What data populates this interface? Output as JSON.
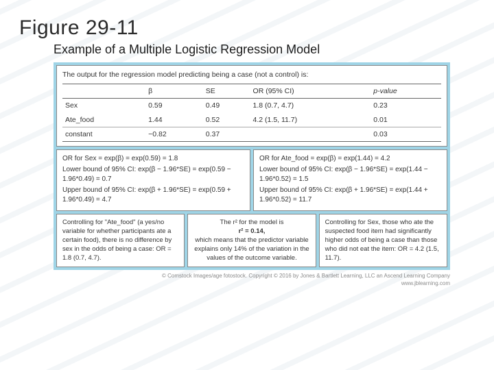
{
  "figure_label": "Figure 29-11",
  "subtitle": "Example of a Multiple Logistic Regression Model",
  "table": {
    "lead": "The output for the regression model predicting being a case (not a control) is:",
    "columns": [
      "",
      "β",
      "SE",
      "OR (95% CI)",
      "p-value"
    ],
    "rows": [
      {
        "label": "Sex",
        "beta": "0.59",
        "se": "0.49",
        "or": "1.8 (0.7, 4.7)",
        "p": "0.23"
      },
      {
        "label": "Ate_food",
        "beta": "1.44",
        "se": "0.52",
        "or": "4.2 (1.5, 11.7)",
        "p": "0.01"
      },
      {
        "label": "constant",
        "beta": "−0.82",
        "se": "0.37",
        "or": "",
        "p": "0.03"
      }
    ]
  },
  "ci_left": {
    "l1": "OR for Sex = exp(β) = exp(0.59) = 1.8",
    "l2": "Lower bound of 95% CI: exp(β − 1.96*SE) = exp(0.59 − 1.96*0.49) = 0.7",
    "l3": "Upper bound of 95% CI: exp(β + 1.96*SE) = exp(0.59 + 1.96*0.49) = 4.7"
  },
  "ci_right": {
    "l1": "OR for Ate_food = exp(β) = exp(1.44) = 4.2",
    "l2": "Lower bound of 95% CI: exp(β − 1.96*SE) = exp(1.44 − 1.96*0.52) = 1.5",
    "l3": "Upper bound of 95% CI: exp(β + 1.96*SE) = exp(1.44 + 1.96*0.52) = 11.7"
  },
  "note_left": "Controlling for \"Ate_food\" (a yes/no variable for whether participants ate a certain food), there is no difference by sex in the odds of being a case: OR = 1.8 (0.7, 4.7).",
  "note_mid_a": "The r² for the model is",
  "note_mid_b": "r² = 0.14,",
  "note_mid_c": "which means that the predictor variable explains only 14% of the variation in the values of the outcome variable.",
  "note_right": "Controlling for Sex, those who ate the suspected food item had significantly higher odds of being a case than those who did not eat the item: OR = 4.2 (1.5, 11.7).",
  "credit_a": "© Comstock Images/age fotostock. Copyright © 2016 by Jones & Bartlett Learning, LLC an Ascend Learning Company",
  "credit_b": "www.jblearning.com",
  "style": {
    "border_color": "#9fd4e6",
    "bg": "#ffffff",
    "text": "#333333",
    "title_fontsize": 30,
    "subtitle_fontsize": 18,
    "body_fontsize": 10
  }
}
